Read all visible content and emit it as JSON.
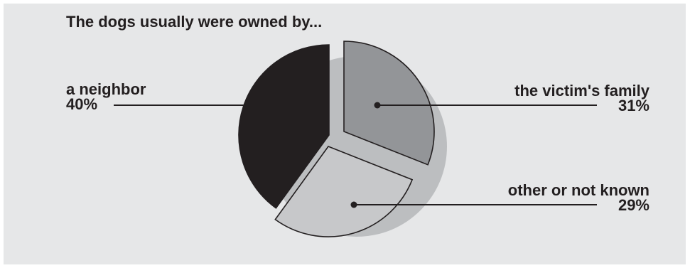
{
  "chart_data": {
    "type": "pie",
    "title": "The dogs usually were owned by...",
    "slices": [
      {
        "label": "a neighbor",
        "value": 40,
        "value_label": "40%",
        "color": "#231f20"
      },
      {
        "label": "the victim's family",
        "value": 31,
        "value_label": "31%",
        "color": "#939598"
      },
      {
        "label": "other or not known",
        "value": 29,
        "value_label": "29%",
        "color": "#c7c8ca"
      }
    ],
    "legend": "none",
    "background_color": "#e6e7e8",
    "shadow_color": "#bcbec0"
  }
}
